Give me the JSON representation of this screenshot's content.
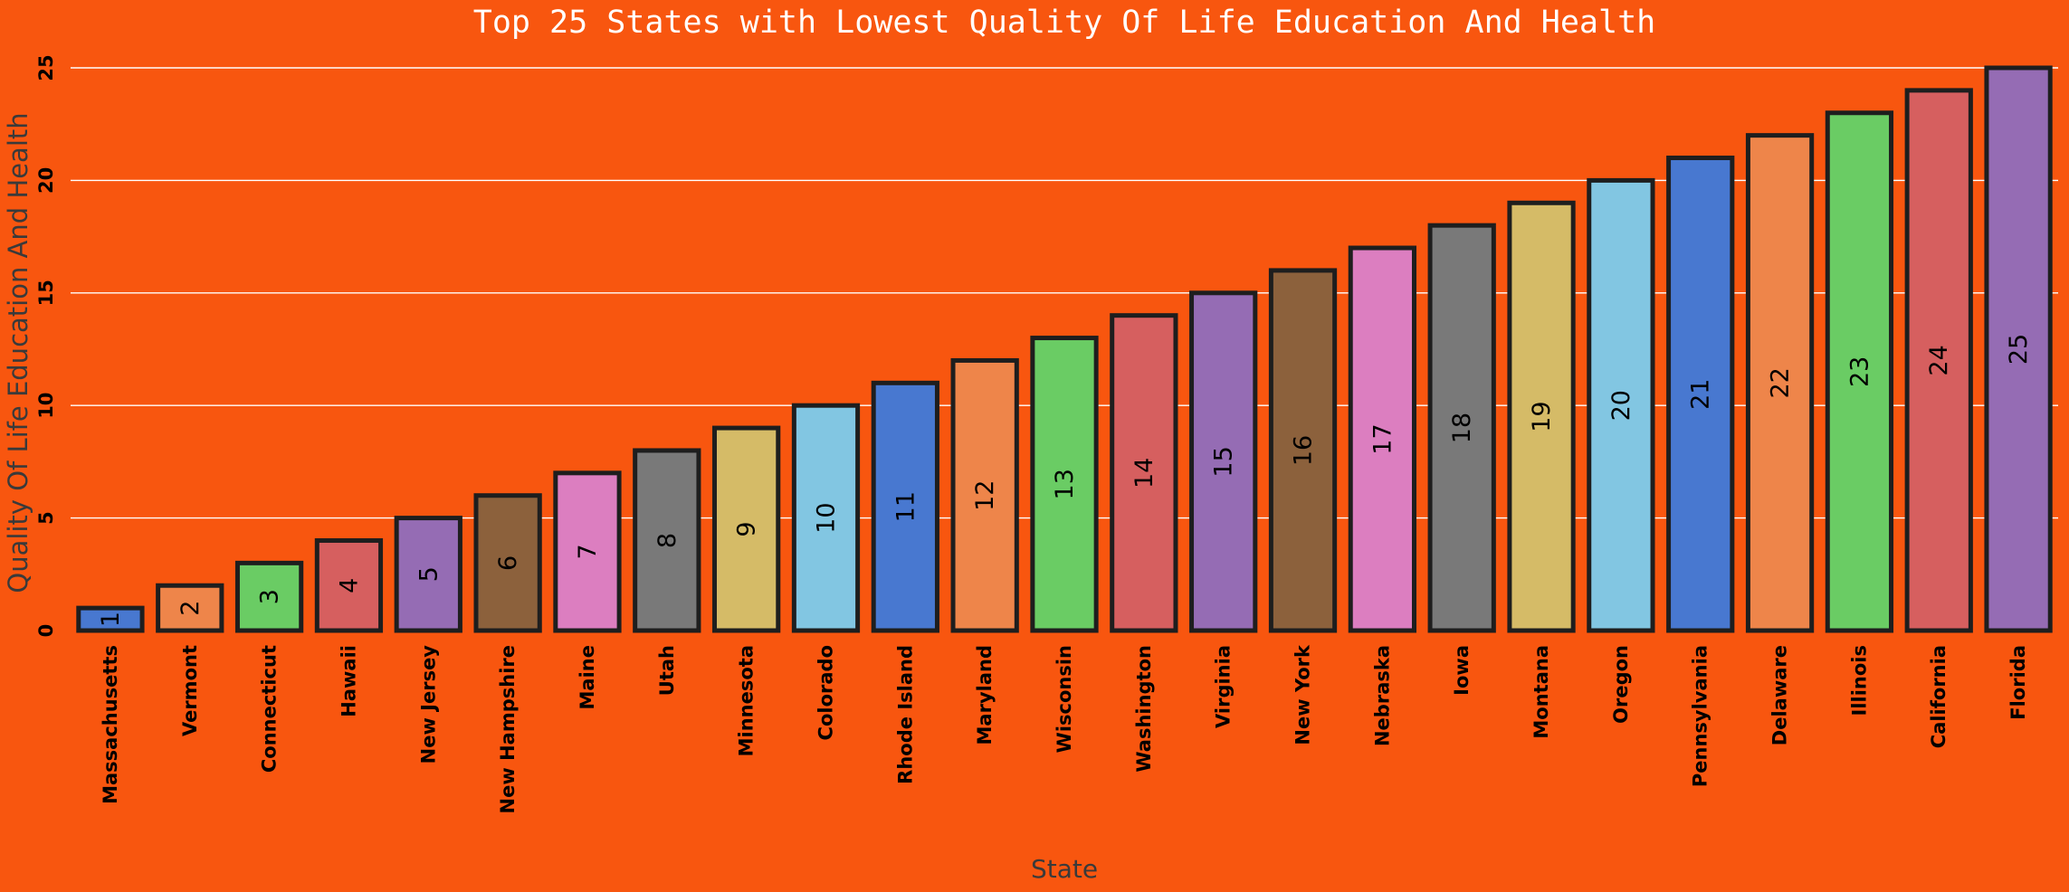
{
  "colors": {
    "background": "#f8560f",
    "grid": "#ffffff",
    "bar_edge": "#1e1e1e",
    "title": "#ffffff",
    "axis_label": "#3a3a3a",
    "tick_label": "#000000",
    "palette": [
      "#4878d0",
      "#ee854a",
      "#6acc64",
      "#d65f5f",
      "#956cb4",
      "#8c613c",
      "#dc7ec0",
      "#797979",
      "#d5bb67",
      "#82c6e2"
    ]
  },
  "chart_data": {
    "type": "bar",
    "title": "Top 25 States with Lowest Quality Of Life Education And Health",
    "xlabel": "State",
    "ylabel": "Quality Of Life Education And Health",
    "categories": [
      "Massachusetts",
      "Vermont",
      "Connecticut",
      "Hawaii",
      "New Jersey",
      "New Hampshire",
      "Maine",
      "Utah",
      "Minnesota",
      "Colorado",
      "Rhode Island",
      "Maryland",
      "Wisconsin",
      "Washington",
      "Virginia",
      "New York",
      "Nebraska",
      "Iowa",
      "Montana",
      "Oregon",
      "Pennsylvania",
      "Delaware",
      "Illinois",
      "California",
      "Florida"
    ],
    "values": [
      1,
      2,
      3,
      4,
      5,
      6,
      7,
      8,
      9,
      10,
      11,
      12,
      13,
      14,
      15,
      16,
      17,
      18,
      19,
      20,
      21,
      22,
      23,
      24,
      25
    ],
    "ylim": [
      0,
      25
    ],
    "yticks": [
      0,
      5,
      10,
      15,
      20,
      25
    ],
    "grid": "horizontal",
    "legend": "none",
    "data_labels": "rotated 90°, centered in bar"
  }
}
